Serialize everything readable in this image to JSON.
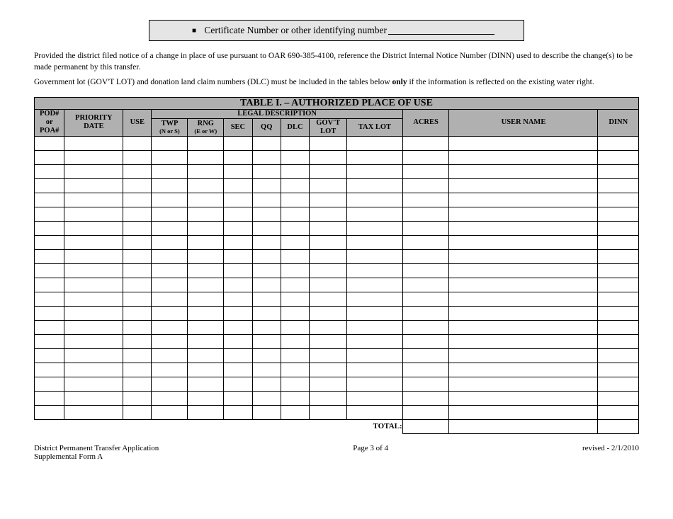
{
  "cert": {
    "bullet": "■",
    "label": "Certificate Number or other identifying number"
  },
  "para1_a": "Provided the district filed notice of a change in place of use pursuant to OAR 690-385-4100, reference the District Internal Notice Number (DINN) used to describe the change(s) to be made permanent by this transfer.",
  "para2_a": "Government lot (GOV'T LOT) and donation land claim numbers (DLC) must be included in the tables below ",
  "para2_bold": "only",
  "para2_b": " if the information is reflected on the existing water right.",
  "table": {
    "title": "TABLE I. – AUTHORIZED PLACE OF USE",
    "legal_desc": "LEGAL DESCRIPTION",
    "headers": {
      "pod": "POD#\nor\nPOA#",
      "priority": "PRIORITY\nDATE",
      "use": "USE",
      "twp": "TWP",
      "twp_sub": "(N or S)",
      "rng": "RNG",
      "rng_sub": "(E or W)",
      "sec": "SEC",
      "qq": "QQ",
      "dlc": "DLC",
      "gov": "GOV'T\nLOT",
      "tax": "TAX LOT",
      "acres": "ACRES",
      "user": "USER NAME",
      "dinn": "DINN"
    },
    "total_label": "TOTAL:",
    "row_count": 20
  },
  "footer": {
    "left1": "District Permanent Transfer Application",
    "left2": "Supplemental Form A",
    "center": "Page 3 of 4",
    "right": "revised - 2/1/2010"
  }
}
